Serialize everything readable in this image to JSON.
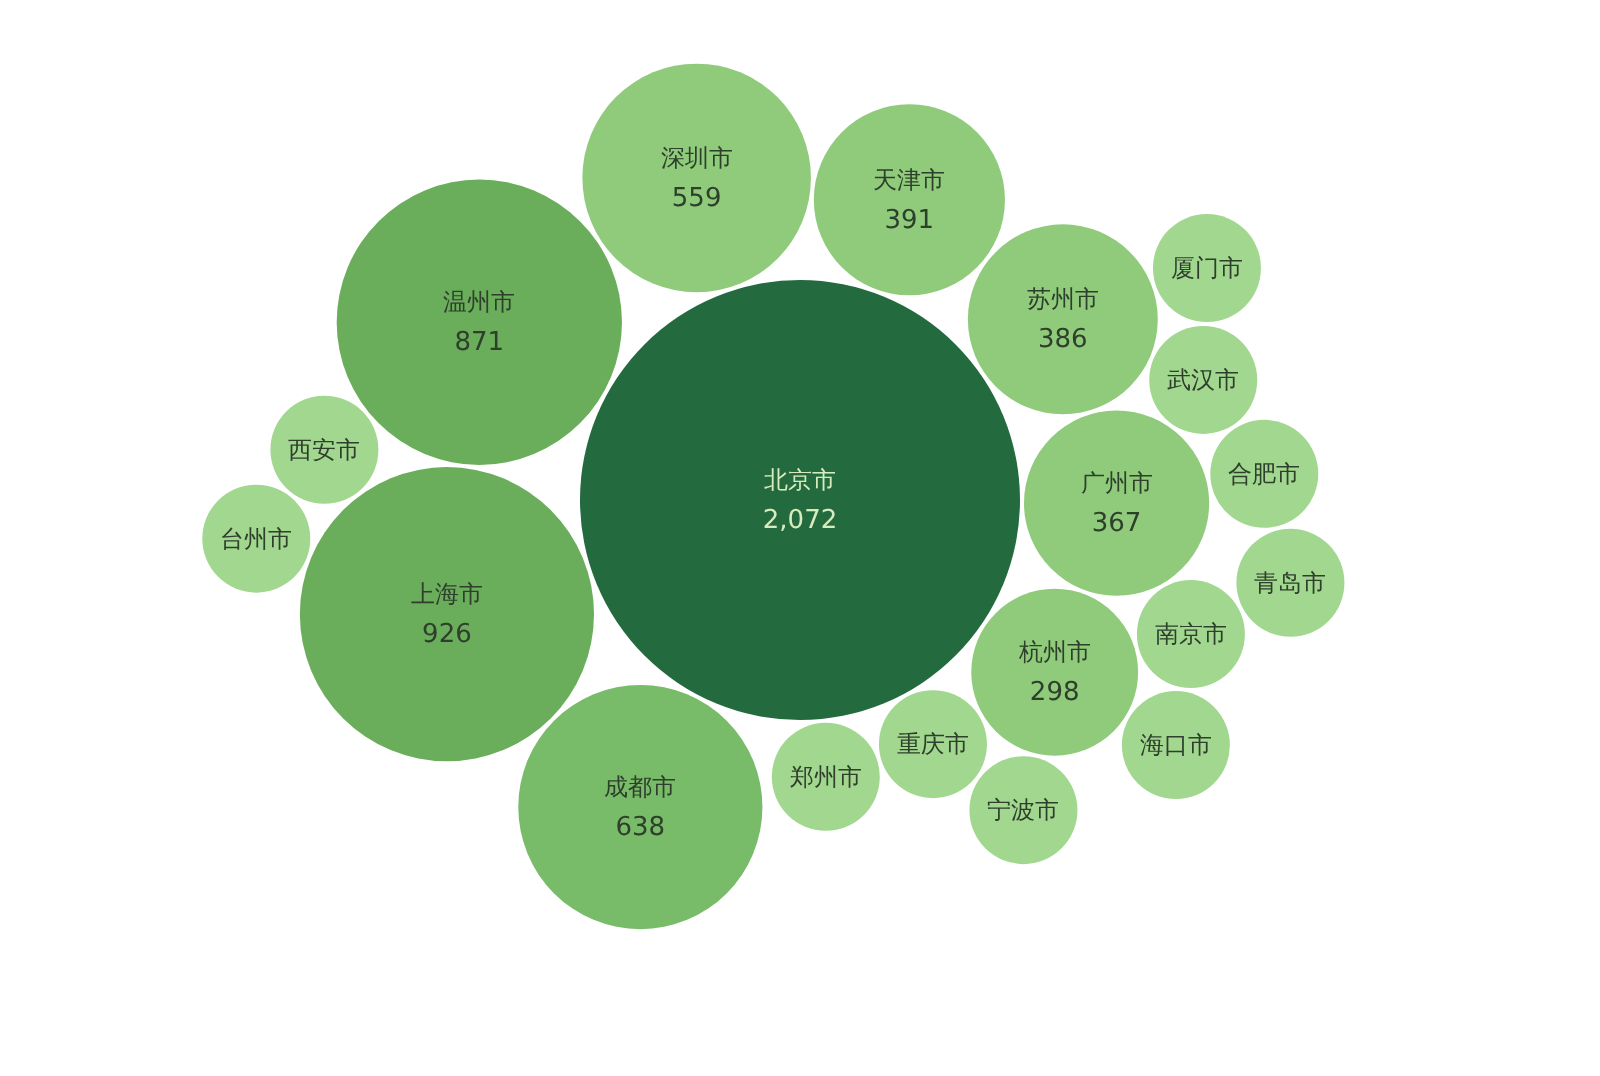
{
  "chart_data": {
    "type": "other",
    "categories": [
      "北京市",
      "上海市",
      "温州市",
      "成都市",
      "深圳市",
      "天津市",
      "苏州市",
      "广州市",
      "杭州市",
      "重庆市",
      "郑州市",
      "南京市",
      "武汉市",
      "合肥市",
      "西安市",
      "青岛市",
      "海口市",
      "宁波市",
      "台州市",
      "厦门市"
    ],
    "values": [
      2072,
      926,
      871,
      638,
      559,
      391,
      386,
      367,
      298,
      null,
      null,
      null,
      null,
      null,
      null,
      null,
      null,
      null,
      null,
      null
    ],
    "value_labels": [
      "2,072",
      "926",
      "871",
      "638",
      "559",
      "391",
      "386",
      "367",
      "298",
      null,
      null,
      null,
      null,
      null,
      null,
      null,
      null,
      null,
      null,
      null
    ],
    "colors": [
      "#236b3e",
      "#6aad5b",
      "#6aad5b",
      "#78bb68",
      "#8fcb7b",
      "#8fcb7b",
      "#8fcb7b",
      "#8fcb7b",
      "#8fcb7b",
      "#a2d78f",
      "#a2d78f",
      "#a2d78f",
      "#a2d78f",
      "#a2d78f",
      "#a2d78f",
      "#a2d78f",
      "#a2d78f",
      "#a2d78f",
      "#a2d78f",
      "#a2d78f"
    ]
  }
}
